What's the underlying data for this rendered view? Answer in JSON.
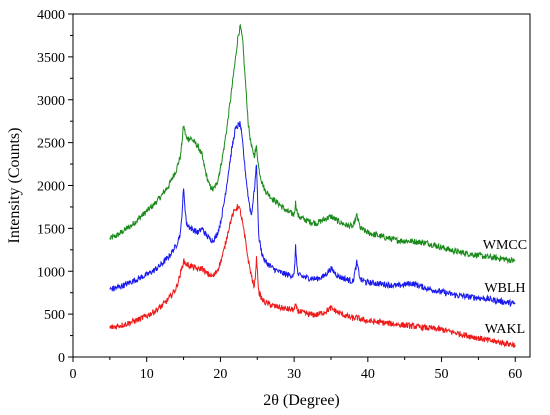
{
  "chart_data": {
    "type": "line",
    "title": "",
    "xlabel": "2θ (Degree)",
    "ylabel": "Intensity (Counts)",
    "xlim": [
      0,
      62
    ],
    "ylim": [
      0,
      4000
    ],
    "x_ticks": [
      0,
      10,
      20,
      30,
      40,
      50,
      60
    ],
    "y_ticks": [
      0,
      500,
      1000,
      1500,
      2000,
      2500,
      3000,
      3500,
      4000
    ],
    "legend": "labels at right end of each curve",
    "grid": false,
    "series": [
      {
        "name": "WMCC",
        "color": "#1a8a1a",
        "x": [
          5,
          6,
          7,
          8,
          9,
          10,
          11,
          12,
          13,
          14,
          14.6,
          15.0,
          15.4,
          16,
          17,
          17.5,
          18,
          18.5,
          19,
          19.5,
          20,
          20.5,
          21,
          21.5,
          22,
          22.4,
          22.7,
          23.0,
          23.4,
          23.8,
          24.2,
          24.6,
          24.9,
          25.2,
          25.6,
          26,
          27,
          28,
          29,
          30,
          30.2,
          30.5,
          31,
          32,
          33,
          34,
          35,
          36,
          37,
          38,
          38.5,
          39,
          40,
          42,
          44,
          46,
          48,
          50,
          52,
          54,
          56,
          58,
          60
        ],
        "values": [
          1380,
          1420,
          1480,
          1540,
          1620,
          1700,
          1780,
          1880,
          2000,
          2180,
          2350,
          2700,
          2550,
          2550,
          2450,
          2350,
          2150,
          2000,
          1950,
          2020,
          2200,
          2450,
          2750,
          3100,
          3450,
          3750,
          3850,
          3700,
          3200,
          2700,
          2450,
          2350,
          2450,
          2200,
          2050,
          1950,
          1850,
          1780,
          1700,
          1660,
          1800,
          1650,
          1620,
          1580,
          1560,
          1600,
          1640,
          1580,
          1540,
          1520,
          1650,
          1500,
          1450,
          1400,
          1360,
          1350,
          1330,
          1280,
          1230,
          1200,
          1170,
          1150,
          1120
        ]
      },
      {
        "name": "WBLH",
        "color": "#1a1aee",
        "x": [
          5,
          6,
          7,
          8,
          9,
          10,
          11,
          12,
          13,
          14,
          14.6,
          15.0,
          15.4,
          16,
          17,
          17.5,
          18,
          18.5,
          19,
          19.5,
          20,
          20.5,
          21,
          21.5,
          22,
          22.4,
          22.7,
          23.0,
          23.4,
          23.8,
          24.2,
          24.6,
          24.9,
          25.2,
          25.6,
          26,
          27,
          28,
          29,
          30,
          30.2,
          30.5,
          31,
          32,
          33,
          34,
          35,
          36,
          37,
          38,
          38.5,
          39,
          40,
          42,
          44,
          46,
          48,
          50,
          52,
          54,
          56,
          58,
          60
        ],
        "values": [
          790,
          810,
          840,
          880,
          920,
          960,
          1010,
          1080,
          1170,
          1300,
          1450,
          1950,
          1550,
          1500,
          1450,
          1500,
          1430,
          1380,
          1360,
          1420,
          1560,
          1800,
          2100,
          2400,
          2650,
          2700,
          2720,
          2500,
          2150,
          1850,
          1650,
          1950,
          2250,
          1400,
          1220,
          1120,
          1040,
          990,
          960,
          950,
          1280,
          960,
          940,
          920,
          910,
          940,
          1030,
          940,
          910,
          880,
          1100,
          900,
          870,
          850,
          830,
          860,
          800,
          760,
          720,
          700,
          680,
          650,
          620
        ]
      },
      {
        "name": "WAKL",
        "color": "#ee1a1a",
        "x": [
          5,
          6,
          7,
          8,
          9,
          10,
          11,
          12,
          13,
          14,
          14.6,
          15.0,
          15.4,
          16,
          17,
          17.5,
          18,
          18.5,
          19,
          19.5,
          20,
          20.5,
          21,
          21.5,
          22,
          22.4,
          22.7,
          23.0,
          23.4,
          23.8,
          24.2,
          24.6,
          24.9,
          25.2,
          25.6,
          26,
          27,
          28,
          29,
          30,
          30.2,
          30.5,
          31,
          32,
          33,
          34,
          35,
          36,
          37,
          38,
          38.5,
          39,
          40,
          42,
          44,
          46,
          48,
          50,
          52,
          54,
          56,
          58,
          60
        ],
        "values": [
          340,
          360,
          380,
          410,
          440,
          480,
          530,
          590,
          680,
          800,
          980,
          1120,
          1080,
          1060,
          1020,
          1040,
          980,
          960,
          940,
          1000,
          1100,
          1250,
          1450,
          1620,
          1720,
          1760,
          1700,
          1560,
          1350,
          1120,
          950,
          800,
          1150,
          760,
          680,
          640,
          600,
          580,
          560,
          550,
          600,
          540,
          520,
          500,
          490,
          520,
          570,
          520,
          480,
          450,
          460,
          440,
          420,
          400,
          380,
          360,
          340,
          320,
          280,
          240,
          200,
          170,
          140
        ]
      }
    ]
  }
}
